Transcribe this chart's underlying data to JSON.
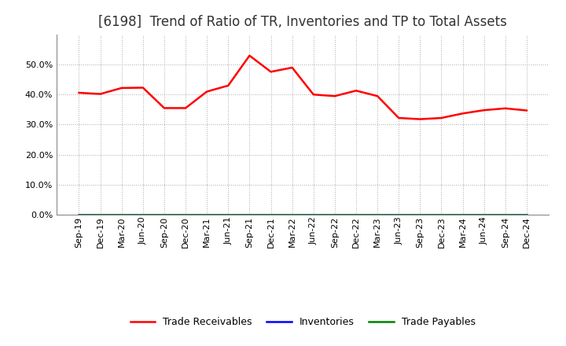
{
  "title": "[6198]  Trend of Ratio of TR, Inventories and TP to Total Assets",
  "x_labels": [
    "Sep-19",
    "Dec-19",
    "Mar-20",
    "Jun-20",
    "Sep-20",
    "Dec-20",
    "Mar-21",
    "Jun-21",
    "Sep-21",
    "Dec-21",
    "Mar-22",
    "Jun-22",
    "Sep-22",
    "Dec-22",
    "Mar-23",
    "Jun-23",
    "Sep-23",
    "Dec-23",
    "Mar-24",
    "Jun-24",
    "Sep-24",
    "Dec-24"
  ],
  "trade_receivables": [
    0.406,
    0.402,
    0.422,
    0.423,
    0.355,
    0.355,
    0.41,
    0.43,
    0.53,
    0.476,
    0.49,
    0.4,
    0.395,
    0.413,
    0.395,
    0.322,
    0.318,
    0.322,
    0.337,
    0.348,
    0.354,
    0.347
  ],
  "inventories": [
    0.0,
    0.0,
    0.0,
    0.0,
    0.0,
    0.0,
    0.0,
    0.0,
    0.0,
    0.0,
    0.0,
    0.0,
    0.0,
    0.0,
    0.0,
    0.0,
    0.0,
    0.0,
    0.0,
    0.0,
    0.0,
    0.0
  ],
  "trade_payables": [
    0.0,
    0.0,
    0.0,
    0.0,
    0.0,
    0.0,
    0.0,
    0.0,
    0.0,
    0.0,
    0.0,
    0.0,
    0.0,
    0.0,
    0.0,
    0.0,
    0.0,
    0.0,
    0.0,
    0.0,
    0.0,
    0.0
  ],
  "tr_color": "#FF0000",
  "inv_color": "#0000FF",
  "tp_color": "#008000",
  "ylim": [
    0.0,
    0.6
  ],
  "yticks": [
    0.0,
    0.1,
    0.2,
    0.3,
    0.4,
    0.5
  ],
  "background_color": "#FFFFFF",
  "plot_bg_color": "#FFFFFF",
  "grid_color": "#AAAAAA",
  "title_fontsize": 12,
  "tick_fontsize": 8,
  "legend_fontsize": 9,
  "line_width": 1.8
}
